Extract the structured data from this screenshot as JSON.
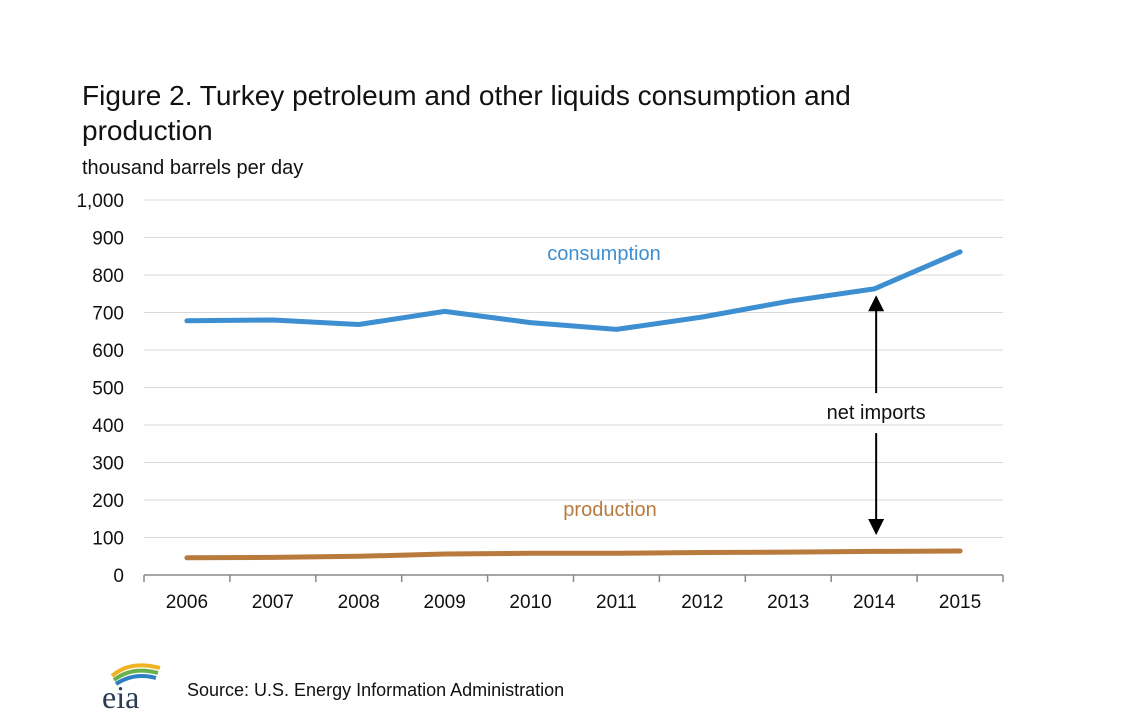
{
  "header": {
    "title": "Figure 2. Turkey petroleum and other liquids consumption and production",
    "units": "thousand barrels per day"
  },
  "footer": {
    "source": "Source: U.S. Energy Information Administration",
    "logo_text": "eia"
  },
  "chart_data": {
    "type": "line",
    "title": "Figure 2. Turkey petroleum and other liquids consumption and production",
    "ylabel": "thousand barrels per day",
    "xlabel": "",
    "ylim": [
      0,
      1000
    ],
    "yticks": [
      0,
      100,
      200,
      300,
      400,
      500,
      600,
      700,
      800,
      900,
      1000
    ],
    "ytick_labels": [
      "0",
      "100",
      "200",
      "300",
      "400",
      "500",
      "600",
      "700",
      "800",
      "900",
      "1,000"
    ],
    "categories": [
      "2006",
      "2007",
      "2008",
      "2009",
      "2010",
      "2011",
      "2012",
      "2013",
      "2014",
      "2015"
    ],
    "grid": true,
    "series": [
      {
        "name": "consumption",
        "color": "#3d8fd1",
        "values": [
          678,
          680,
          668,
          703,
          673,
          655,
          688,
          730,
          763,
          862
        ]
      },
      {
        "name": "production",
        "color": "#b87a3d",
        "values": [
          46,
          47,
          50,
          56,
          58,
          58,
          60,
          61,
          63,
          64
        ]
      }
    ],
    "annotations": [
      {
        "text": "net imports",
        "category": "2014",
        "from_series": "production",
        "to_series": "consumption"
      }
    ]
  }
}
